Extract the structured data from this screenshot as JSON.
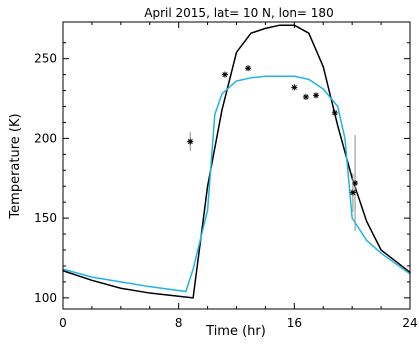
{
  "chart_data": {
    "type": "line",
    "title": "April 2015, lat= 10 N, lon= 180",
    "xlabel": "Time (hr)",
    "ylabel": "Temperature (K)",
    "xlim": [
      0,
      24
    ],
    "ylim": [
      93,
      273
    ],
    "xticks": [
      0,
      8,
      16,
      24
    ],
    "yticks": [
      100,
      150,
      200,
      250
    ],
    "grid": false,
    "colors": {
      "black_line": "#000000",
      "blue_line": "#1fb4e6",
      "observations": "#000000",
      "error_bars": "#8c8c8c"
    },
    "series": [
      {
        "kind": "line",
        "color": "#000000",
        "points": [
          [
            0,
            117
          ],
          [
            2,
            111
          ],
          [
            4,
            106
          ],
          [
            6,
            103
          ],
          [
            8,
            101
          ],
          [
            9,
            100
          ],
          [
            10,
            170
          ],
          [
            11,
            218
          ],
          [
            12,
            254
          ],
          [
            13,
            266
          ],
          [
            14,
            269
          ],
          [
            15,
            271
          ],
          [
            16,
            271
          ],
          [
            17,
            266
          ],
          [
            18,
            245
          ],
          [
            19,
            208
          ],
          [
            20,
            175
          ],
          [
            21,
            148
          ],
          [
            22,
            130
          ],
          [
            24,
            116
          ]
        ]
      },
      {
        "kind": "line",
        "color": "#1fb4e6",
        "points": [
          [
            0,
            118
          ],
          [
            2,
            113
          ],
          [
            4,
            110
          ],
          [
            6,
            107
          ],
          [
            8.5,
            104
          ],
          [
            9,
            118
          ],
          [
            10,
            155
          ],
          [
            10.5,
            215
          ],
          [
            11,
            228
          ],
          [
            12,
            236
          ],
          [
            13,
            238
          ],
          [
            14,
            239
          ],
          [
            16,
            239
          ],
          [
            17,
            237
          ],
          [
            18,
            231
          ],
          [
            19,
            220
          ],
          [
            19.5,
            200
          ],
          [
            20,
            150
          ],
          [
            20.5,
            143
          ],
          [
            21,
            136
          ],
          [
            22,
            128
          ],
          [
            24,
            115
          ]
        ]
      },
      {
        "kind": "points",
        "points": [
          {
            "x": 8.8,
            "y": 198,
            "err": 6
          },
          {
            "x": 11.2,
            "y": 240
          },
          {
            "x": 12.8,
            "y": 244
          },
          {
            "x": 16.0,
            "y": 232
          },
          {
            "x": 16.8,
            "y": 226
          },
          {
            "x": 17.5,
            "y": 227
          },
          {
            "x": 18.8,
            "y": 216
          },
          {
            "x": 20.2,
            "y": 172,
            "err": 30
          },
          {
            "x": 20.05,
            "y": 166,
            "err": 12
          }
        ]
      }
    ]
  }
}
